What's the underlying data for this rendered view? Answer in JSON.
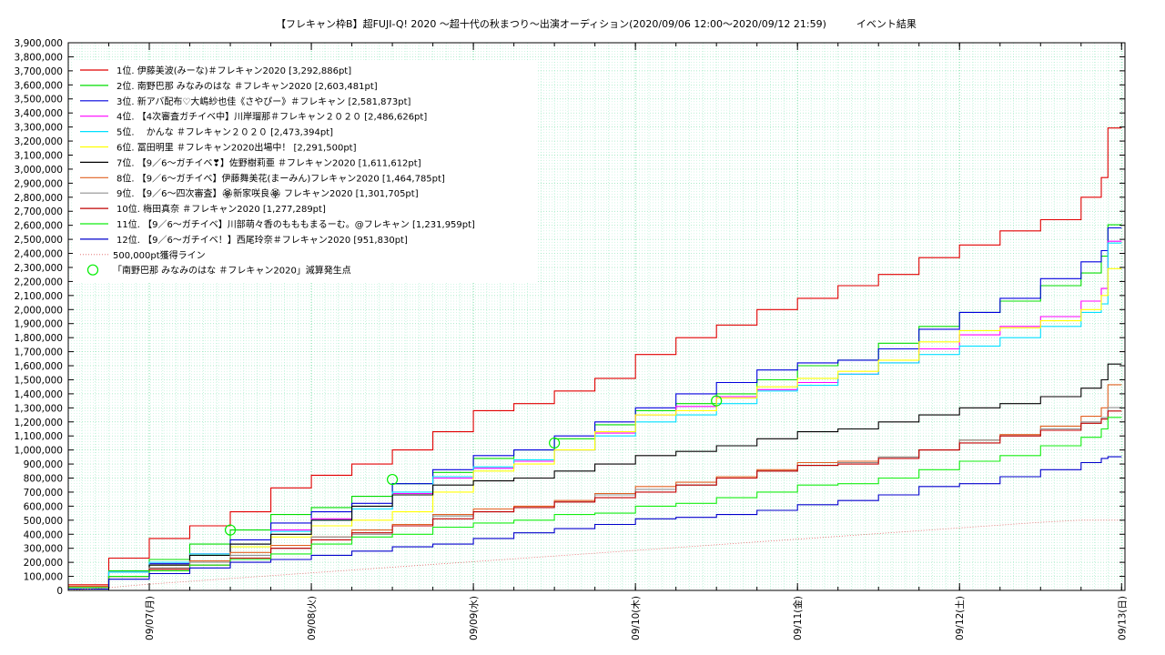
{
  "chart_data": {
    "type": "line",
    "title": "【フレキャン枠B】超FUJI-Q! 2020 ～超十代の秋まつり～出演オーディション(2020/09/06 12:00～2020/09/12 21:59)　　　イベント結果",
    "ylim": [
      0,
      3900000
    ],
    "yticks": [
      0,
      100000,
      200000,
      300000,
      400000,
      500000,
      600000,
      700000,
      800000,
      900000,
      1000000,
      1100000,
      1200000,
      1300000,
      1400000,
      1500000,
      1600000,
      1700000,
      1800000,
      1900000,
      2000000,
      2100000,
      2200000,
      2300000,
      2400000,
      2500000,
      2600000,
      2700000,
      2800000,
      2900000,
      3000000,
      3100000,
      3200000,
      3300000,
      3400000,
      3500000,
      3600000,
      3700000,
      3800000,
      3900000
    ],
    "ytick_labels": [
      "0",
      "100,000",
      "200,000",
      "300,000",
      "400,000",
      "500,000",
      "600,000",
      "700,000",
      "800,000",
      "900,000",
      "1,000,000",
      "1,100,000",
      "1,200,000",
      "1,300,000",
      "1,400,000",
      "1,500,000",
      "1,600,000",
      "1,700,000",
      "1,800,000",
      "1,900,000",
      "2,000,000",
      "2,100,000",
      "2,200,000",
      "2,300,000",
      "2,400,000",
      "2,500,000",
      "2,600,000",
      "2,700,000",
      "2,800,000",
      "2,900,000",
      "3,000,000",
      "3,100,000",
      "3,200,000",
      "3,300,000",
      "3,400,000",
      "3,500,000",
      "3,600,000",
      "3,700,000",
      "3,800,000",
      "3,900,000"
    ],
    "xlim": [
      "2020-09-06 12:00",
      "2020-09-13 00:30"
    ],
    "xticks": [
      "2020-09-07 00:00",
      "2020-09-08 00:00",
      "2020-09-09 00:00",
      "2020-09-10 00:00",
      "2020-09-11 00:00",
      "2020-09-12 00:00",
      "2020-09-13 00:00"
    ],
    "xtick_labels": [
      "09/07(月)",
      "09/08(火)",
      "09/09(水)",
      "09/10(木)",
      "09/11(金)",
      "09/12(土)",
      "09/13(日)"
    ],
    "grid": true,
    "legend_position": "top-left",
    "x": [
      "2020-09-06 12:00",
      "2020-09-06 18:00",
      "2020-09-07 00:00",
      "2020-09-07 06:00",
      "2020-09-07 12:00",
      "2020-09-07 18:00",
      "2020-09-08 00:00",
      "2020-09-08 06:00",
      "2020-09-08 12:00",
      "2020-09-08 18:00",
      "2020-09-09 00:00",
      "2020-09-09 06:00",
      "2020-09-09 12:00",
      "2020-09-09 18:00",
      "2020-09-10 00:00",
      "2020-09-10 06:00",
      "2020-09-10 12:00",
      "2020-09-10 18:00",
      "2020-09-11 00:00",
      "2020-09-11 06:00",
      "2020-09-11 12:00",
      "2020-09-11 18:00",
      "2020-09-12 00:00",
      "2020-09-12 06:00",
      "2020-09-12 12:00",
      "2020-09-12 18:00",
      "2020-09-12 21:00",
      "2020-09-12 21:59",
      "2020-09-13 00:00"
    ],
    "series": [
      {
        "name": "1位. 伊藤美波(みーな)＃フレキャン2020 [3,292,886pt]",
        "color": "#e00000",
        "style": "solid",
        "values": [
          40000,
          230000,
          370000,
          460000,
          560000,
          730000,
          820000,
          900000,
          1000000,
          1130000,
          1280000,
          1330000,
          1420000,
          1510000,
          1680000,
          1800000,
          1890000,
          2000000,
          2080000,
          2170000,
          2250000,
          2370000,
          2460000,
          2560000,
          2640000,
          2800000,
          2940000,
          3292886,
          3292886
        ]
      },
      {
        "name": "2位. 南野巴那 みなみのはな ＃フレキャン2020 [2,603,481pt]",
        "color": "#00dd00",
        "style": "solid",
        "values": [
          20000,
          140000,
          220000,
          330000,
          430000,
          540000,
          590000,
          670000,
          760000,
          840000,
          940000,
          1000000,
          1080000,
          1180000,
          1280000,
          1330000,
          1400000,
          1500000,
          1600000,
          1640000,
          1760000,
          1880000,
          1980000,
          2060000,
          2170000,
          2260000,
          2380000,
          2603481,
          2603481
        ]
      },
      {
        "name": "3位. 新アバ配布♡大嶋紗也佳《さやぴー》＃フレキャン [2,581,873pt]",
        "color": "#0000dd",
        "style": "solid",
        "values": [
          20000,
          130000,
          190000,
          260000,
          360000,
          480000,
          560000,
          620000,
          760000,
          860000,
          960000,
          1000000,
          1100000,
          1200000,
          1300000,
          1400000,
          1480000,
          1570000,
          1620000,
          1640000,
          1720000,
          1860000,
          1980000,
          2080000,
          2220000,
          2340000,
          2420000,
          2581873,
          2581873
        ]
      },
      {
        "name": "4位. 【4次審査ガチイベ中】川岸瑠那＃フレキャン２０２０ [2,486,626pt]",
        "color": "#ff00ff",
        "style": "solid",
        "values": [
          20000,
          130000,
          200000,
          260000,
          330000,
          430000,
          510000,
          580000,
          690000,
          800000,
          870000,
          920000,
          1000000,
          1120000,
          1250000,
          1310000,
          1380000,
          1430000,
          1480000,
          1540000,
          1620000,
          1720000,
          1820000,
          1880000,
          1950000,
          2060000,
          2150000,
          2486626,
          2486626
        ]
      },
      {
        "name": "5位. 　かんな ＃フレキャン２０２０ [2,473,394pt]",
        "color": "#00e0ff",
        "style": "solid",
        "values": [
          20000,
          130000,
          200000,
          260000,
          330000,
          420000,
          500000,
          580000,
          700000,
          810000,
          880000,
          930000,
          1000000,
          1100000,
          1200000,
          1250000,
          1330000,
          1420000,
          1460000,
          1540000,
          1620000,
          1680000,
          1740000,
          1800000,
          1880000,
          1980000,
          2040000,
          2473394,
          2473394
        ]
      },
      {
        "name": "6位. 冨田明里 ＃フレキャン2020出場中！ [2,291,500pt]",
        "color": "#ffff00",
        "style": "solid",
        "values": [
          20000,
          100000,
          180000,
          250000,
          310000,
          380000,
          460000,
          500000,
          560000,
          700000,
          850000,
          900000,
          1000000,
          1130000,
          1250000,
          1280000,
          1370000,
          1450000,
          1510000,
          1560000,
          1640000,
          1770000,
          1850000,
          1870000,
          1920000,
          2000000,
          2100000,
          2291500,
          2291500
        ]
      },
      {
        "name": "7位. 【9／6～ガチイベ❣】佐野樹莉亜 ＃フレキャン2020 [1,611,612pt]",
        "color": "#000000",
        "style": "solid",
        "values": [
          20000,
          100000,
          180000,
          250000,
          330000,
          400000,
          500000,
          600000,
          680000,
          750000,
          780000,
          800000,
          850000,
          900000,
          960000,
          990000,
          1030000,
          1080000,
          1130000,
          1150000,
          1200000,
          1250000,
          1300000,
          1330000,
          1380000,
          1440000,
          1500000,
          1611612,
          1611612
        ]
      },
      {
        "name": "8位. 【9／6～ガチイベ】伊藤舞美花(まーみん)フレキャン2020 [1,464,785pt]",
        "color": "#e06020",
        "style": "solid",
        "values": [
          30000,
          100000,
          160000,
          210000,
          270000,
          320000,
          380000,
          430000,
          470000,
          540000,
          580000,
          600000,
          640000,
          690000,
          740000,
          770000,
          810000,
          860000,
          910000,
          920000,
          950000,
          1000000,
          1070000,
          1110000,
          1170000,
          1240000,
          1300000,
          1464785,
          1464785
        ]
      },
      {
        "name": "9位. 【9／6～四次審査】🏵新家咲良🏵 フレキャン2020 [1,301,705pt]",
        "color": "#909090",
        "style": "solid",
        "values": [
          20000,
          100000,
          160000,
          200000,
          250000,
          300000,
          380000,
          400000,
          460000,
          530000,
          560000,
          590000,
          630000,
          680000,
          720000,
          750000,
          800000,
          850000,
          890000,
          910000,
          950000,
          1000000,
          1070000,
          1100000,
          1150000,
          1200000,
          1230000,
          1301705,
          1301705
        ]
      },
      {
        "name": "10位. 梅田真奈 ＃フレキャン2020 [1,277,289pt]",
        "color": "#c00000",
        "style": "solid",
        "values": [
          20000,
          100000,
          150000,
          180000,
          230000,
          300000,
          360000,
          410000,
          460000,
          510000,
          560000,
          590000,
          630000,
          660000,
          700000,
          750000,
          800000,
          850000,
          890000,
          900000,
          940000,
          1000000,
          1050000,
          1100000,
          1140000,
          1190000,
          1220000,
          1277289,
          1277289
        ]
      },
      {
        "name": "11位. 【9／6～ガチイベ】川部萌々香のもももまるーむ。@フレキャン [1,231,959pt]",
        "color": "#10ee10",
        "style": "solid",
        "values": [
          20000,
          100000,
          140000,
          180000,
          220000,
          260000,
          330000,
          380000,
          400000,
          450000,
          480000,
          500000,
          540000,
          550000,
          600000,
          620000,
          660000,
          700000,
          750000,
          760000,
          800000,
          860000,
          920000,
          960000,
          1030000,
          1090000,
          1150000,
          1231959,
          1231959
        ]
      },
      {
        "name": "12位. 【9／6～ガチイベ！】西尾玲奈＃フレキャン2020 [951,830pt]",
        "color": "#0000cc",
        "style": "solid",
        "values": [
          10000,
          80000,
          120000,
          160000,
          200000,
          220000,
          250000,
          280000,
          310000,
          330000,
          370000,
          410000,
          440000,
          470000,
          510000,
          520000,
          540000,
          570000,
          610000,
          640000,
          680000,
          740000,
          760000,
          810000,
          860000,
          910000,
          940000,
          951830,
          951830
        ]
      },
      {
        "name": "500,000pt獲得ライン",
        "color": "#e06060",
        "style": "dotted",
        "values": [
          0,
          20000,
          45000,
          65000,
          85000,
          105000,
          125000,
          145000,
          165000,
          185000,
          205000,
          225000,
          245000,
          265000,
          285000,
          305000,
          325000,
          345000,
          365000,
          385000,
          405000,
          425000,
          445000,
          465000,
          485000,
          500000,
          500000,
          500000,
          500000
        ]
      }
    ],
    "markers": {
      "name": "「南野巴那 みなみのはな ＃フレキャン2020」減算発生点",
      "color": "#00ee00",
      "points": [
        {
          "x": "2020-09-07 12:00",
          "y": 430000
        },
        {
          "x": "2020-09-08 12:00",
          "y": 790000
        },
        {
          "x": "2020-09-09 12:00",
          "y": 1050000
        },
        {
          "x": "2020-09-10 12:00",
          "y": 1350000
        }
      ]
    }
  }
}
